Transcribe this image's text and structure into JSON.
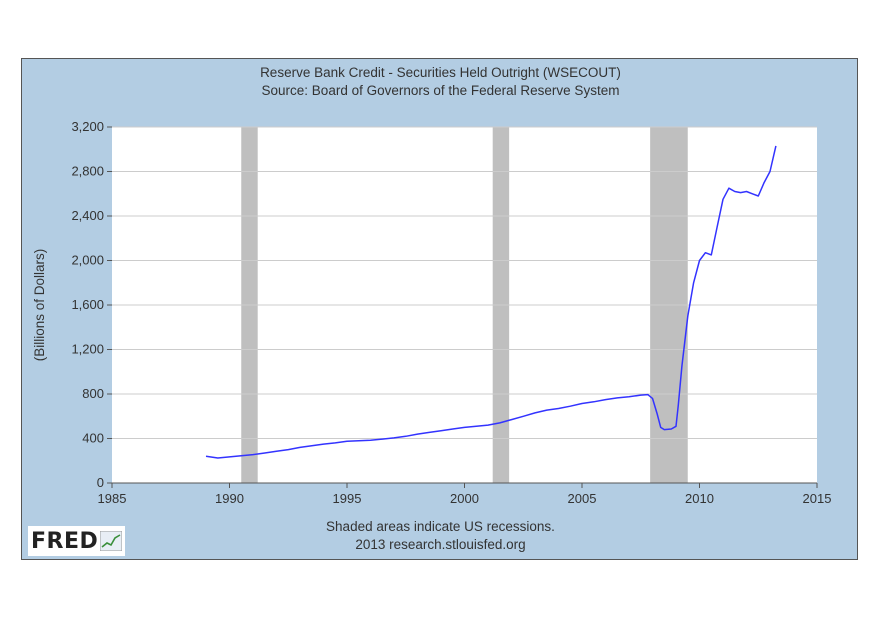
{
  "chart_data": {
    "type": "line",
    "title": "Reserve Bank Credit - Securities Held Outright (WSECOUT)",
    "subtitle": "Source: Board of Governors of the Federal Reserve System",
    "xlabel": "",
    "ylabel": "(Billions of Dollars)",
    "xlim": [
      1985,
      2015
    ],
    "ylim": [
      0,
      3200
    ],
    "x_ticks": [
      "1985",
      "1990",
      "1995",
      "2000",
      "2005",
      "2010",
      "2015"
    ],
    "y_ticks": [
      "0",
      "400",
      "800",
      "1,200",
      "1,600",
      "2,000",
      "2,400",
      "2,800",
      "3,200"
    ],
    "grid": true,
    "recessions": [
      [
        1990.5,
        1991.2
      ],
      [
        2001.2,
        2001.9
      ],
      [
        2007.9,
        2009.5
      ]
    ],
    "series": [
      {
        "color": "#3333ff",
        "x": [
          1989.0,
          1989.5,
          1990.0,
          1990.5,
          1991.0,
          1991.5,
          1992.0,
          1992.5,
          1993.0,
          1993.5,
          1994.0,
          1994.5,
          1995.0,
          1995.5,
          1996.0,
          1996.5,
          1997.0,
          1997.5,
          1998.0,
          1998.5,
          1999.0,
          1999.5,
          2000.0,
          2000.5,
          2001.0,
          2001.5,
          2002.0,
          2002.5,
          2003.0,
          2003.5,
          2004.0,
          2004.5,
          2005.0,
          2005.5,
          2006.0,
          2006.5,
          2007.0,
          2007.5,
          2007.8,
          2008.0,
          2008.2,
          2008.35,
          2008.5,
          2008.8,
          2009.0,
          2009.1,
          2009.25,
          2009.5,
          2009.75,
          2010.0,
          2010.25,
          2010.5,
          2010.75,
          2011.0,
          2011.25,
          2011.5,
          2011.75,
          2012.0,
          2012.25,
          2012.5,
          2012.75,
          2013.0,
          2013.25
        ],
        "y": [
          240,
          225,
          235,
          245,
          255,
          270,
          285,
          300,
          320,
          335,
          350,
          360,
          375,
          380,
          385,
          395,
          405,
          420,
          440,
          455,
          470,
          485,
          500,
          510,
          520,
          540,
          570,
          600,
          630,
          655,
          670,
          690,
          715,
          730,
          750,
          765,
          775,
          790,
          795,
          760,
          620,
          500,
          480,
          485,
          510,
          700,
          1050,
          1500,
          1800,
          2000,
          2070,
          2050,
          2300,
          2550,
          2650,
          2620,
          2610,
          2620,
          2600,
          2580,
          2700,
          2800,
          3030
        ]
      }
    ]
  },
  "footer": {
    "line1": "Shaded areas indicate US recessions.",
    "line2": "2013 research.stlouisfed.org"
  },
  "logo": {
    "text": "FRED"
  }
}
